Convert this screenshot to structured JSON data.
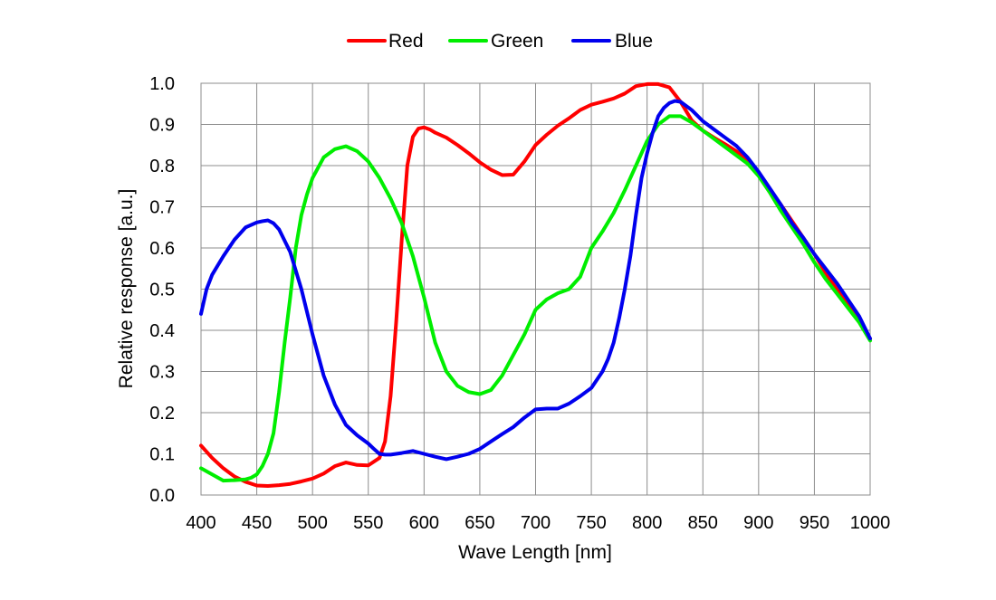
{
  "chart_data": {
    "type": "line",
    "title": "",
    "xlabel": "Wave Length [nm]",
    "ylabel": "Relative response [a.u.]",
    "xlim": [
      400,
      1000
    ],
    "ylim": [
      0,
      1
    ],
    "grid": true,
    "legend_position": "top-center",
    "x_ticks": [
      "400",
      "450",
      "500",
      "550",
      "600",
      "650",
      "700",
      "750",
      "800",
      "850",
      "900",
      "950",
      "1000"
    ],
    "y_ticks": [
      "0.0",
      "0.1",
      "0.2",
      "0.3",
      "0.4",
      "0.5",
      "0.6",
      "0.7",
      "0.8",
      "0.9",
      "1.0"
    ],
    "series": [
      {
        "name": "Red",
        "color": "#ff0000",
        "x": [
          400,
          410,
          420,
          430,
          440,
          450,
          460,
          470,
          480,
          490,
          500,
          510,
          520,
          530,
          540,
          550,
          560,
          565,
          570,
          575,
          580,
          585,
          590,
          595,
          600,
          605,
          610,
          620,
          630,
          640,
          650,
          660,
          670,
          680,
          690,
          700,
          710,
          720,
          730,
          740,
          750,
          760,
          770,
          780,
          790,
          800,
          810,
          820,
          830,
          840,
          850,
          860,
          870,
          880,
          890,
          900,
          910,
          920,
          930,
          940,
          950,
          960,
          970,
          980,
          990,
          1000
        ],
        "y": [
          0.12,
          0.09,
          0.065,
          0.045,
          0.032,
          0.023,
          0.022,
          0.024,
          0.027,
          0.033,
          0.04,
          0.052,
          0.07,
          0.079,
          0.073,
          0.072,
          0.09,
          0.13,
          0.24,
          0.42,
          0.62,
          0.8,
          0.87,
          0.89,
          0.893,
          0.888,
          0.88,
          0.868,
          0.85,
          0.83,
          0.808,
          0.79,
          0.777,
          0.778,
          0.81,
          0.85,
          0.875,
          0.897,
          0.915,
          0.935,
          0.948,
          0.955,
          0.963,
          0.975,
          0.993,
          0.998,
          0.998,
          0.99,
          0.955,
          0.91,
          0.885,
          0.868,
          0.852,
          0.835,
          0.812,
          0.778,
          0.74,
          0.705,
          0.665,
          0.625,
          0.585,
          0.54,
          0.5,
          0.46,
          0.425,
          0.38
        ]
      },
      {
        "name": "Green",
        "color": "#00ee00",
        "x": [
          400,
          410,
          420,
          430,
          440,
          445,
          450,
          455,
          460,
          465,
          470,
          475,
          480,
          485,
          490,
          495,
          500,
          510,
          520,
          530,
          540,
          550,
          560,
          570,
          580,
          590,
          600,
          610,
          620,
          630,
          640,
          650,
          660,
          670,
          680,
          690,
          700,
          710,
          720,
          730,
          740,
          750,
          760,
          770,
          780,
          790,
          800,
          810,
          820,
          830,
          840,
          850,
          860,
          870,
          880,
          890,
          900,
          910,
          920,
          930,
          940,
          950,
          960,
          970,
          980,
          990,
          1000
        ],
        "y": [
          0.065,
          0.05,
          0.035,
          0.036,
          0.038,
          0.042,
          0.05,
          0.07,
          0.1,
          0.15,
          0.25,
          0.37,
          0.48,
          0.6,
          0.68,
          0.73,
          0.77,
          0.82,
          0.84,
          0.847,
          0.835,
          0.81,
          0.77,
          0.72,
          0.66,
          0.58,
          0.48,
          0.37,
          0.3,
          0.265,
          0.25,
          0.245,
          0.255,
          0.29,
          0.34,
          0.39,
          0.45,
          0.475,
          0.49,
          0.5,
          0.53,
          0.6,
          0.64,
          0.685,
          0.74,
          0.8,
          0.86,
          0.9,
          0.92,
          0.92,
          0.905,
          0.885,
          0.865,
          0.845,
          0.825,
          0.805,
          0.775,
          0.735,
          0.69,
          0.65,
          0.61,
          0.565,
          0.525,
          0.49,
          0.455,
          0.42,
          0.375
        ]
      },
      {
        "name": "Blue",
        "color": "#0000ee",
        "x": [
          400,
          405,
          410,
          420,
          430,
          440,
          450,
          455,
          460,
          465,
          470,
          480,
          490,
          500,
          510,
          520,
          530,
          540,
          550,
          555,
          560,
          565,
          570,
          580,
          590,
          600,
          610,
          620,
          630,
          640,
          650,
          660,
          670,
          680,
          690,
          700,
          710,
          720,
          730,
          740,
          750,
          760,
          765,
          770,
          775,
          780,
          785,
          790,
          795,
          800,
          805,
          810,
          815,
          820,
          825,
          830,
          840,
          850,
          860,
          870,
          880,
          890,
          900,
          910,
          920,
          930,
          940,
          950,
          960,
          970,
          980,
          990,
          1000
        ],
        "y": [
          0.44,
          0.5,
          0.535,
          0.58,
          0.62,
          0.65,
          0.662,
          0.665,
          0.667,
          0.66,
          0.645,
          0.59,
          0.5,
          0.39,
          0.29,
          0.22,
          0.17,
          0.145,
          0.125,
          0.112,
          0.1,
          0.098,
          0.098,
          0.102,
          0.107,
          0.1,
          0.093,
          0.087,
          0.093,
          0.1,
          0.112,
          0.13,
          0.148,
          0.165,
          0.188,
          0.208,
          0.21,
          0.21,
          0.222,
          0.24,
          0.26,
          0.3,
          0.33,
          0.37,
          0.43,
          0.5,
          0.58,
          0.68,
          0.77,
          0.83,
          0.88,
          0.92,
          0.94,
          0.952,
          0.957,
          0.955,
          0.935,
          0.908,
          0.888,
          0.868,
          0.848,
          0.82,
          0.785,
          0.745,
          0.705,
          0.66,
          0.625,
          0.585,
          0.55,
          0.515,
          0.475,
          0.435,
          0.38
        ]
      }
    ]
  }
}
